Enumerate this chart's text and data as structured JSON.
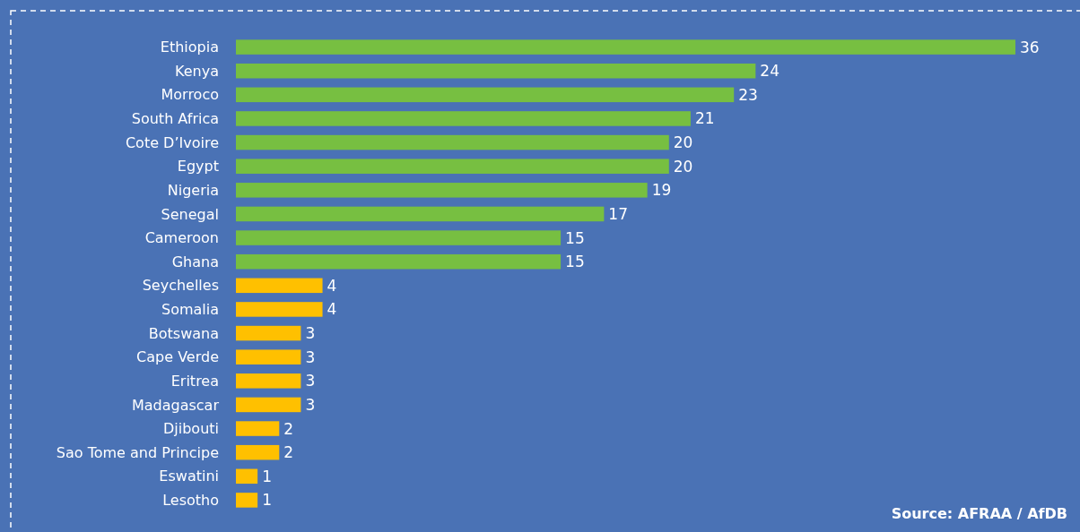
{
  "chart_data": {
    "type": "bar",
    "orientation": "horizontal",
    "categories": [
      "Ethiopia",
      "Kenya",
      "Morroco",
      "South Africa",
      "Cote D’Ivoire",
      "Egypt",
      "Nigeria",
      "Senegal",
      "Cameroon",
      "Ghana",
      "Seychelles",
      "Somalia",
      "Botswana",
      "Cape Verde",
      "Eritrea",
      "Madagascar",
      "Djibouti",
      "Sao Tome and Principe",
      "Eswatini",
      "Lesotho"
    ],
    "values": [
      36,
      24,
      23,
      21,
      20,
      20,
      19,
      17,
      15,
      15,
      4,
      4,
      3,
      3,
      3,
      3,
      2,
      2,
      1,
      1
    ],
    "colors": [
      "#77bf41",
      "#77bf41",
      "#77bf41",
      "#77bf41",
      "#77bf41",
      "#77bf41",
      "#77bf41",
      "#77bf41",
      "#77bf41",
      "#77bf41",
      "#ffc000",
      "#ffc000",
      "#ffc000",
      "#ffc000",
      "#ffc000",
      "#ffc000",
      "#ffc000",
      "#ffc000",
      "#ffc000",
      "#ffc000"
    ],
    "data_labels": true,
    "xlim": [
      0,
      36
    ],
    "tick_labels": "y",
    "annotations": [
      "Source: AFRAA / AfDB"
    ]
  }
}
